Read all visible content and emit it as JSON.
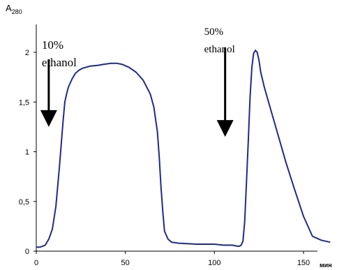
{
  "chart_data": {
    "type": "line",
    "title": "",
    "ylabel": {
      "main": "A",
      "sub": "280"
    },
    "xlabel": "мин",
    "xlim": [
      0,
      170
    ],
    "ylim": [
      0,
      2.2
    ],
    "xticks": [
      0,
      50,
      100,
      150
    ],
    "xtick_labels": [
      "0",
      "50",
      "100",
      "150"
    ],
    "yticks": [
      0,
      0.5,
      1,
      1.5,
      2
    ],
    "ytick_labels": [
      "0",
      "0,5",
      "1",
      "1,5",
      "2"
    ],
    "grid": false,
    "series": [
      {
        "color": "#1f2a8a",
        "x": [
          0,
          2,
          5,
          7,
          9,
          11,
          13,
          15,
          16,
          17,
          18,
          20,
          22,
          24,
          26,
          30,
          35,
          38,
          42,
          45,
          48,
          52,
          56,
          60,
          64,
          66,
          68,
          69,
          70,
          71,
          72,
          74,
          76,
          80,
          90,
          100,
          105,
          110,
          113,
          114,
          115,
          116,
          117,
          118,
          119,
          120,
          121,
          122,
          123,
          124,
          125,
          126,
          128,
          132,
          136,
          140,
          145,
          150,
          155,
          160,
          165
        ],
        "y": [
          0.04,
          0.04,
          0.06,
          0.12,
          0.22,
          0.45,
          0.85,
          1.3,
          1.5,
          1.58,
          1.65,
          1.73,
          1.79,
          1.82,
          1.84,
          1.86,
          1.87,
          1.88,
          1.89,
          1.89,
          1.88,
          1.85,
          1.8,
          1.72,
          1.58,
          1.45,
          1.2,
          0.95,
          0.65,
          0.4,
          0.2,
          0.12,
          0.09,
          0.08,
          0.07,
          0.07,
          0.06,
          0.06,
          0.05,
          0.05,
          0.06,
          0.1,
          0.3,
          0.7,
          1.1,
          1.55,
          1.85,
          1.99,
          2.02,
          2.0,
          1.92,
          1.8,
          1.65,
          1.4,
          1.15,
          0.9,
          0.62,
          0.35,
          0.15,
          0.11,
          0.09
        ]
      }
    ],
    "annotations": [
      {
        "lines": [
          "10%",
          "ethanol"
        ],
        "arrow_x": 7,
        "arrow_top": 1.93,
        "arrow_bottom": 1.25
      },
      {
        "lines": [
          "50%",
          "ethanol"
        ],
        "arrow_x": 106,
        "arrow_top": 2.05,
        "arrow_bottom": 1.15
      }
    ]
  }
}
